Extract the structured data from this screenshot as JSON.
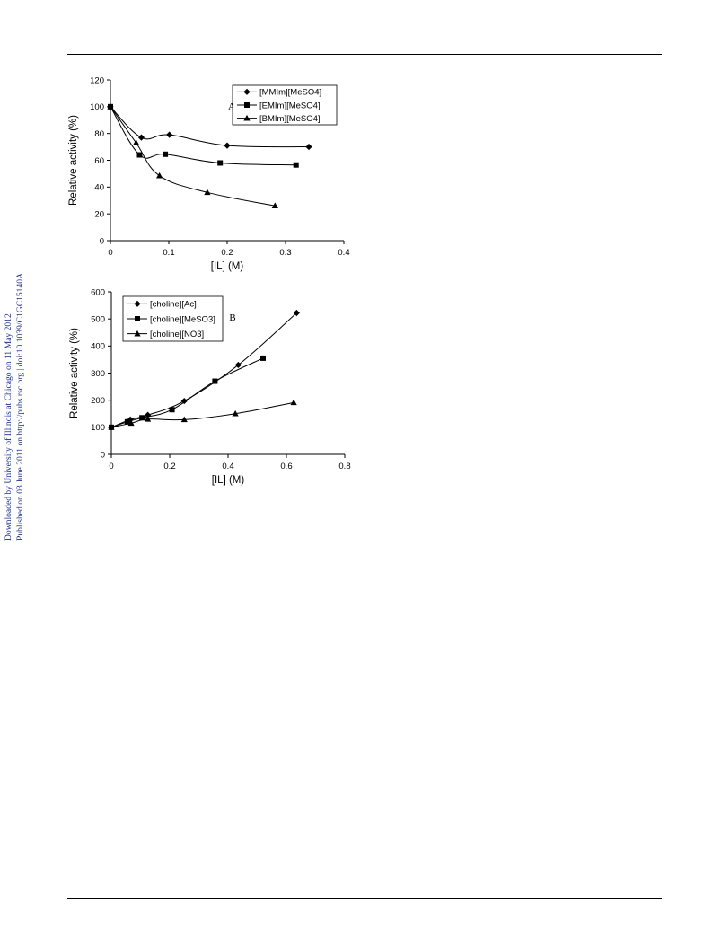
{
  "side_note": {
    "line1": "Downloaded by University of Illinois at Chicago on 11 May 2012",
    "line2": "Published on 03 June 2011 on http://pubs.rsc.org | doi:10.1039/C1GC15140A"
  },
  "chart_data": [
    {
      "type": "line",
      "panel_label": "A",
      "xlabel": "[IL] (M)",
      "ylabel": "Relative activity (%)",
      "xlim": [
        0,
        0.4
      ],
      "ylim": [
        0,
        120
      ],
      "xticks": [
        0,
        0.1,
        0.2,
        0.3,
        0.4
      ],
      "xtick_labels": [
        "0",
        "0.1",
        "0.2",
        "0.3",
        "0.4"
      ],
      "yticks": [
        0,
        20,
        40,
        60,
        80,
        100,
        120
      ],
      "ytick_labels": [
        "0",
        "20",
        "40",
        "60",
        "80",
        "100",
        "120"
      ],
      "grid": false,
      "legend_position": "top-right",
      "series": [
        {
          "name": "[MMIm][MeSO4]",
          "marker": "diamond",
          "x": [
            0,
            0.053,
            0.101,
            0.2,
            0.34
          ],
          "y": [
            100,
            77,
            79,
            71,
            70
          ]
        },
        {
          "name": "[EMIm][MeSO4]",
          "marker": "square",
          "x": [
            0,
            0.05,
            0.094,
            0.188,
            0.318
          ],
          "y": [
            100,
            64,
            64.5,
            58,
            56.5
          ]
        },
        {
          "name": "[BMIm][MeSO4]",
          "marker": "triangle",
          "x": [
            0,
            0.044,
            0.084,
            0.166,
            0.282
          ],
          "y": [
            100,
            73,
            48.5,
            36,
            26
          ]
        }
      ]
    },
    {
      "type": "line",
      "panel_label": "B",
      "xlabel": "[IL] (M)",
      "ylabel": "Relative activity (%)",
      "xlim": [
        0,
        0.8
      ],
      "ylim": [
        0,
        600
      ],
      "xticks": [
        0,
        0.2,
        0.4,
        0.6,
        0.8
      ],
      "xtick_labels": [
        "0",
        "0.2",
        "0.4",
        "0.6",
        "0.8"
      ],
      "yticks": [
        0,
        100,
        200,
        300,
        400,
        500,
        600
      ],
      "ytick_labels": [
        "0",
        "100",
        "200",
        "300",
        "400",
        "500",
        "600"
      ],
      "grid": false,
      "legend_position": "top-left",
      "series": [
        {
          "name": "[choline][Ac]",
          "marker": "diamond",
          "x": [
            0,
            0.065,
            0.125,
            0.25,
            0.435,
            0.635
          ],
          "y": [
            100,
            128,
            145,
            197,
            330,
            522
          ]
        },
        {
          "name": "[choline][MeSO3]",
          "marker": "square",
          "x": [
            0,
            0.055,
            0.105,
            0.208,
            0.355,
            0.52
          ],
          "y": [
            100,
            120,
            135,
            165,
            270,
            355
          ]
        },
        {
          "name": "[choline][NO3]",
          "marker": "triangle",
          "x": [
            0,
            0.068,
            0.125,
            0.25,
            0.425,
            0.625
          ],
          "y": [
            100,
            115,
            130,
            128,
            150,
            191
          ]
        }
      ]
    }
  ]
}
